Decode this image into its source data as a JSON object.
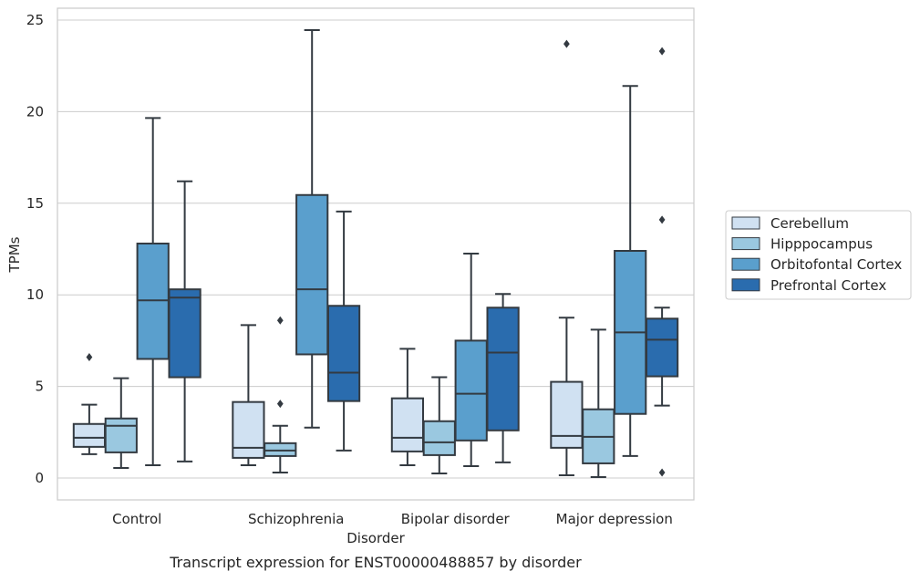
{
  "caption": "Transcript expression for ENST00000488857 by disorder",
  "chart_data": {
    "type": "box",
    "xlabel": "Disorder",
    "ylabel": "TPMs",
    "ylim": [
      -1.2,
      25.7
    ],
    "yticks": [
      0,
      5,
      10,
      15,
      20,
      25
    ],
    "grid": "horizontal",
    "legend_position": "right",
    "categories": [
      "Control",
      "Schizophrenia",
      "Bipolar disorder",
      "Major depression"
    ],
    "series": [
      {
        "name": "Cerebellum",
        "color": "#d0e1f2",
        "boxes": [
          {
            "whislo": 1.3,
            "q1": 1.7,
            "med": 2.2,
            "q3": 2.95,
            "whishi": 4.0,
            "fliers": [
              6.6
            ]
          },
          {
            "whislo": 0.7,
            "q1": 1.1,
            "med": 1.65,
            "q3": 4.15,
            "whishi": 8.35,
            "fliers": []
          },
          {
            "whislo": 0.7,
            "q1": 1.45,
            "med": 2.2,
            "q3": 4.35,
            "whishi": 7.05,
            "fliers": []
          },
          {
            "whislo": 0.15,
            "q1": 1.65,
            "med": 2.3,
            "q3": 5.25,
            "whishi": 8.75,
            "fliers": [
              23.7
            ]
          }
        ]
      },
      {
        "name": "Hipppocampus",
        "color": "#9ac8e0",
        "boxes": [
          {
            "whislo": 0.55,
            "q1": 1.4,
            "med": 2.85,
            "q3": 3.25,
            "whishi": 5.45,
            "fliers": []
          },
          {
            "whislo": 0.3,
            "q1": 1.2,
            "med": 1.5,
            "q3": 1.9,
            "whishi": 2.85,
            "fliers": [
              8.6,
              4.05
            ]
          },
          {
            "whislo": 0.25,
            "q1": 1.25,
            "med": 1.95,
            "q3": 3.1,
            "whishi": 5.5,
            "fliers": []
          },
          {
            "whislo": 0.05,
            "q1": 0.8,
            "med": 2.25,
            "q3": 3.75,
            "whishi": 8.1,
            "fliers": []
          }
        ]
      },
      {
        "name": "Orbitofontal Cortex",
        "color": "#5a9fcd",
        "boxes": [
          {
            "whislo": 0.7,
            "q1": 6.5,
            "med": 9.7,
            "q3": 12.8,
            "whishi": 19.65,
            "fliers": []
          },
          {
            "whislo": 2.75,
            "q1": 6.75,
            "med": 10.3,
            "q3": 15.45,
            "whishi": 24.45,
            "fliers": []
          },
          {
            "whislo": 0.65,
            "q1": 2.05,
            "med": 4.6,
            "q3": 7.5,
            "whishi": 12.25,
            "fliers": []
          },
          {
            "whislo": 1.2,
            "q1": 3.5,
            "med": 7.95,
            "q3": 12.4,
            "whishi": 21.4,
            "fliers": []
          }
        ]
      },
      {
        "name": "Prefrontal Cortex",
        "color": "#2a6cae",
        "boxes": [
          {
            "whislo": 0.9,
            "q1": 5.5,
            "med": 9.85,
            "q3": 10.3,
            "whishi": 16.2,
            "fliers": []
          },
          {
            "whislo": 1.5,
            "q1": 4.2,
            "med": 5.75,
            "q3": 9.4,
            "whishi": 14.55,
            "fliers": []
          },
          {
            "whislo": 0.85,
            "q1": 2.6,
            "med": 6.85,
            "q3": 9.3,
            "whishi": 10.05,
            "fliers": []
          },
          {
            "whislo": 3.95,
            "q1": 5.55,
            "med": 7.55,
            "q3": 8.7,
            "whishi": 9.3,
            "fliers": [
              23.3,
              14.1,
              0.3
            ]
          }
        ]
      }
    ]
  }
}
